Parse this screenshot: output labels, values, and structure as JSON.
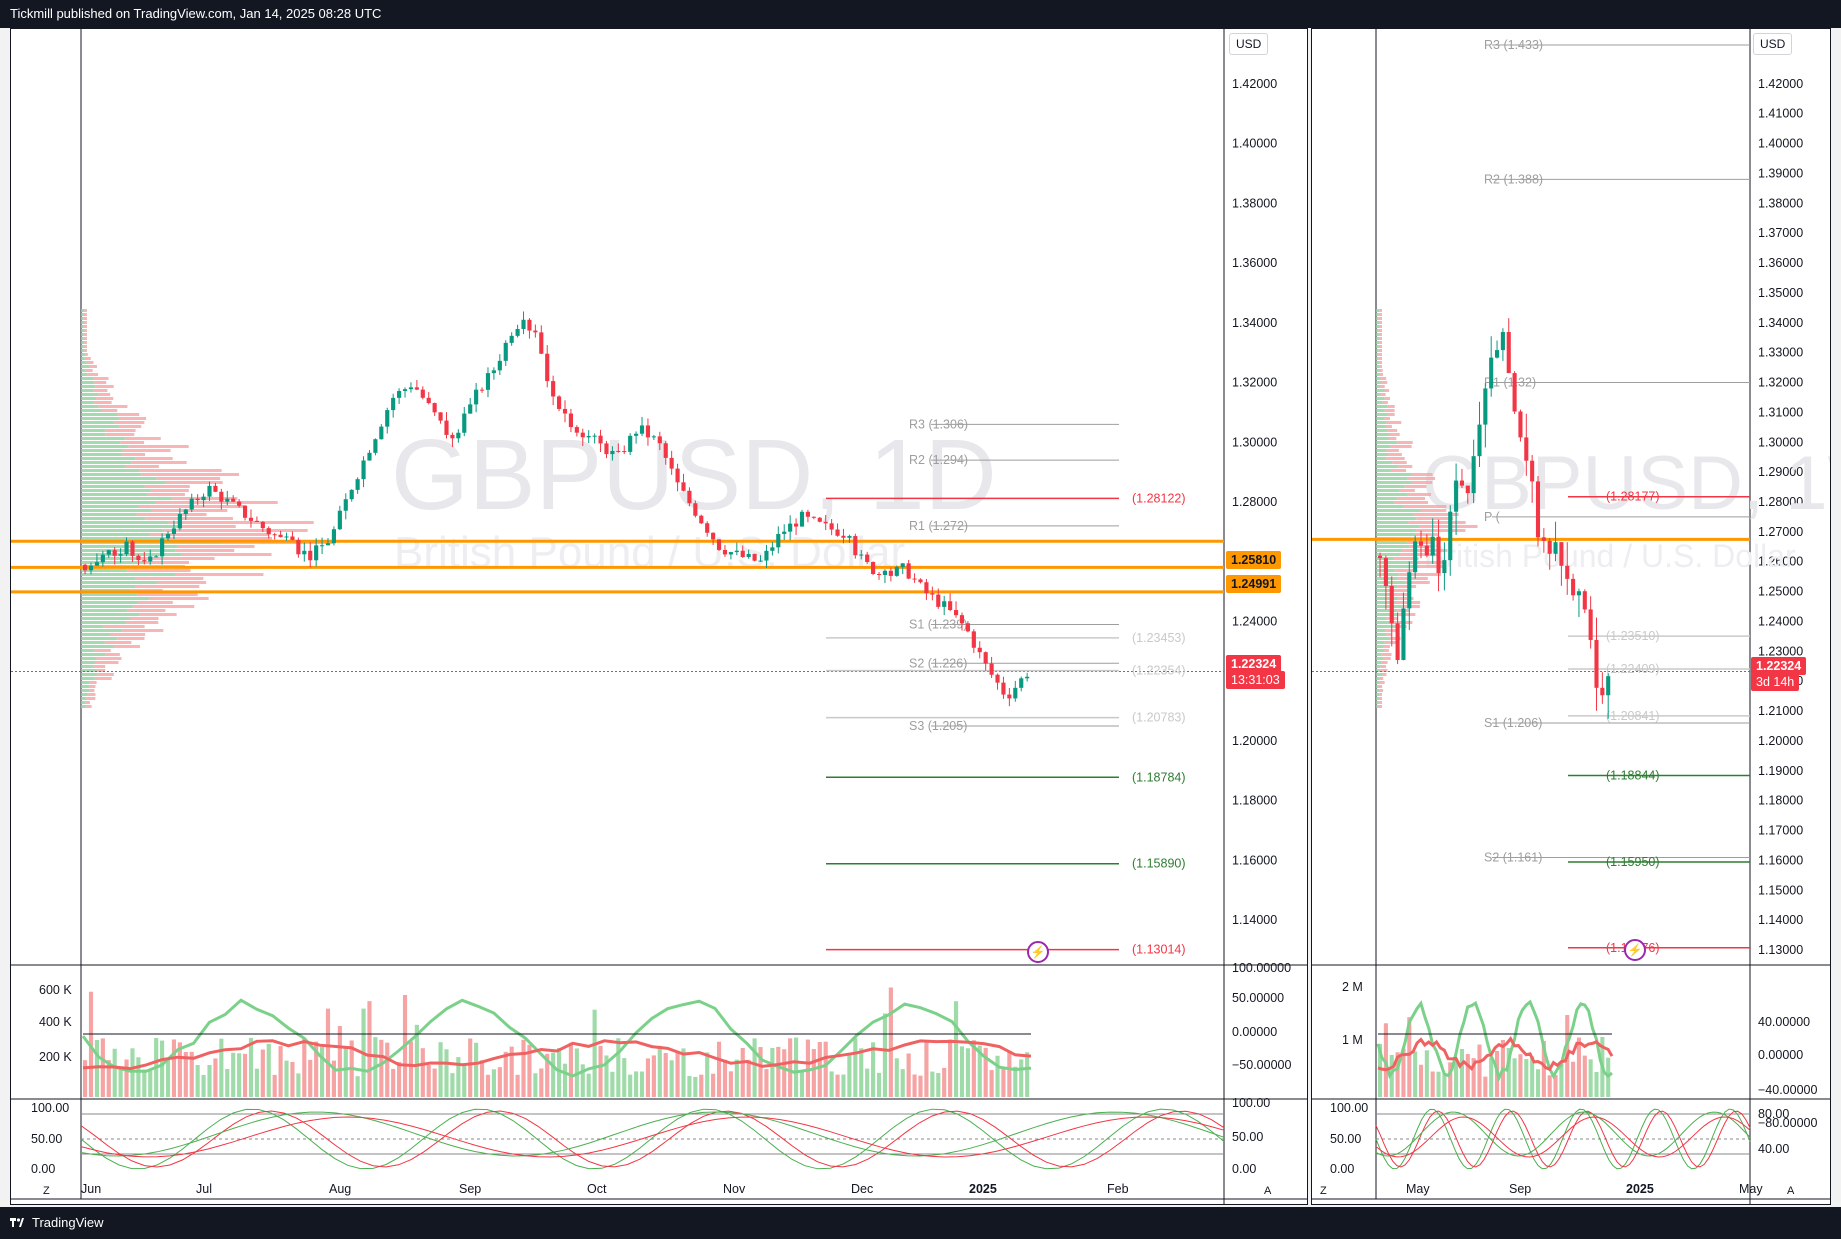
{
  "header": {
    "text": "Tickmill published on TradingView.com, Jan 14, 2025 08:28 UTC"
  },
  "footer": {
    "brand": "TradingView"
  },
  "left": {
    "watermark": {
      "symbol": "GBPUSD, 1D",
      "name": "British Pound / U.S. Dollar"
    },
    "currency": "USD",
    "price_ticks": [
      "1.42000",
      "1.40000",
      "1.38000",
      "1.36000",
      "1.34000",
      "1.32000",
      "1.30000",
      "1.28000",
      "1.26000",
      "1.24000",
      "1.22000",
      "1.20000",
      "1.18000",
      "1.16000",
      "1.14000"
    ],
    "badges": {
      "last": "1.22324",
      "countdown": "13:31:03",
      "level1": "1.25810",
      "level2": "1.24991"
    },
    "pivots": [
      {
        "label": "R3 (1.306)",
        "value": 1.306
      },
      {
        "label": "R2 (1.294)",
        "value": 1.294
      },
      {
        "label": "R1 (1.272)",
        "value": 1.272
      },
      {
        "label": "S1 (1.239)",
        "value": 1.239
      },
      {
        "label": "S2 (1.226)",
        "value": 1.226
      },
      {
        "label": "S3 (1.205)",
        "value": 1.205
      }
    ],
    "fib_levels": [
      {
        "label": "(1.28122)",
        "value": 1.28122,
        "color": "#f23645"
      },
      {
        "label": "(1.23453)",
        "value": 1.23453,
        "color": "#c9c9c9"
      },
      {
        "label": "(1.22354)",
        "value": 1.22354,
        "color": "#c9c9c9"
      },
      {
        "label": "(1.20783)",
        "value": 1.20783,
        "color": "#c9c9c9"
      },
      {
        "label": "(1.18784)",
        "value": 1.18784,
        "color": "#2e7d32"
      },
      {
        "label": "(1.15890)",
        "value": 1.1589,
        "color": "#2e7d32"
      },
      {
        "label": "(1.13014)",
        "value": 1.13014,
        "color": "#f23645"
      }
    ],
    "volume_ticks": [
      "600 K",
      "400 K",
      "200 K"
    ],
    "osc_ticks_right": [
      "100.00000",
      "50.00000",
      "0.00000",
      "−50.00000"
    ],
    "stoch_ticks_left": [
      "100.00",
      "50.00",
      "0.00"
    ],
    "stoch_ticks_right": [
      "100.00",
      "50.00",
      "0.00"
    ],
    "time_labels": [
      "Jun",
      "Jul",
      "Aug",
      "Sep",
      "Oct",
      "Nov",
      "Dec",
      "2025",
      "Feb"
    ],
    "z": "Z",
    "a": "A"
  },
  "right": {
    "watermark": {
      "symbol": "GBPUSD, 1W",
      "name": "British Pound / U.S. Dollar"
    },
    "currency": "USD",
    "price_ticks": [
      "1.42000",
      "1.41000",
      "1.40000",
      "1.39000",
      "1.38000",
      "1.37000",
      "1.36000",
      "1.35000",
      "1.34000",
      "1.33000",
      "1.32000",
      "1.31000",
      "1.30000",
      "1.29000",
      "1.28000",
      "1.27000",
      "1.26000",
      "1.25000",
      "1.24000",
      "1.23000",
      "1.22000",
      "1.21000",
      "1.20000",
      "1.19000",
      "1.18000",
      "1.17000",
      "1.16000",
      "1.15000",
      "1.14000",
      "1.13000"
    ],
    "badges": {
      "last": "1.22324",
      "countdown": "3d 14h"
    },
    "pivots": [
      {
        "label": "R3 (1.433)",
        "value": 1.433
      },
      {
        "label": "R2 (1.388)",
        "value": 1.388
      },
      {
        "label": "R1 (1.32)",
        "value": 1.32
      },
      {
        "label": "P (",
        "value": 1.275
      },
      {
        "label": "S1 (1.206)",
        "value": 1.206
      },
      {
        "label": "S2 (1.161)",
        "value": 1.161
      }
    ],
    "fib_levels": [
      {
        "label": "(1.28177)",
        "value": 1.28177,
        "color": "#f23645"
      },
      {
        "label": "(1.23510)",
        "value": 1.2351,
        "color": "#c9c9c9"
      },
      {
        "label": "(1.22409)",
        "value": 1.22409,
        "color": "#c9c9c9"
      },
      {
        "label": "(1.20841)",
        "value": 1.20841,
        "color": "#c9c9c9"
      },
      {
        "label": "(1.18844)",
        "value": 1.18844,
        "color": "#2e7d32"
      },
      {
        "label": "(1.15950)",
        "value": 1.1595,
        "color": "#2e7d32"
      },
      {
        "label": "(1.13076)",
        "value": 1.13076,
        "color": "#f23645"
      }
    ],
    "volume_ticks": [
      "2 M",
      "1 M"
    ],
    "osc_ticks_right": [
      "40.00000",
      "0.00000",
      "−40.00000",
      "−80.00000"
    ],
    "stoch_ticks_left": [
      "100.00",
      "50.00",
      "0.00"
    ],
    "stoch_ticks_right": [
      "80.00",
      "40.00"
    ],
    "time_labels": [
      "May",
      "Sep",
      "2025",
      "May"
    ],
    "z": "Z",
    "a": "A"
  },
  "chart_data": [
    {
      "type": "candlestick",
      "title": "GBPUSD, 1D",
      "ylim": [
        1.125,
        1.435
      ],
      "x": [
        "Jun",
        "Jul",
        "Aug",
        "Sep",
        "Oct",
        "Nov",
        "Dec",
        "2025",
        "Feb"
      ],
      "close_path": [
        1.259,
        1.262,
        1.265,
        1.258,
        1.27,
        1.278,
        1.285,
        1.28,
        1.275,
        1.27,
        1.266,
        1.262,
        1.268,
        1.285,
        1.3,
        1.315,
        1.32,
        1.31,
        1.3,
        1.315,
        1.325,
        1.34,
        1.338,
        1.31,
        1.305,
        1.3,
        1.295,
        1.305,
        1.3,
        1.285,
        1.275,
        1.265,
        1.262,
        1.26,
        1.27,
        1.275,
        1.272,
        1.27,
        1.26,
        1.255,
        1.258,
        1.25,
        1.245,
        1.238,
        1.225,
        1.215,
        1.223
      ],
      "last": 1.22324
    },
    {
      "type": "candlestick",
      "title": "GBPUSD, 1W",
      "ylim": [
        1.125,
        1.435
      ],
      "x": [
        "May",
        "Sep",
        "2025",
        "May"
      ],
      "close_path": [
        1.262,
        1.245,
        1.23,
        1.255,
        1.27,
        1.26,
        1.268,
        1.25,
        1.275,
        1.29,
        1.28,
        1.3,
        1.32,
        1.33,
        1.34,
        1.31,
        1.3,
        1.29,
        1.27,
        1.26,
        1.27,
        1.255,
        1.25,
        1.245,
        1.235,
        1.215,
        1.223
      ],
      "last": 1.22324
    }
  ]
}
